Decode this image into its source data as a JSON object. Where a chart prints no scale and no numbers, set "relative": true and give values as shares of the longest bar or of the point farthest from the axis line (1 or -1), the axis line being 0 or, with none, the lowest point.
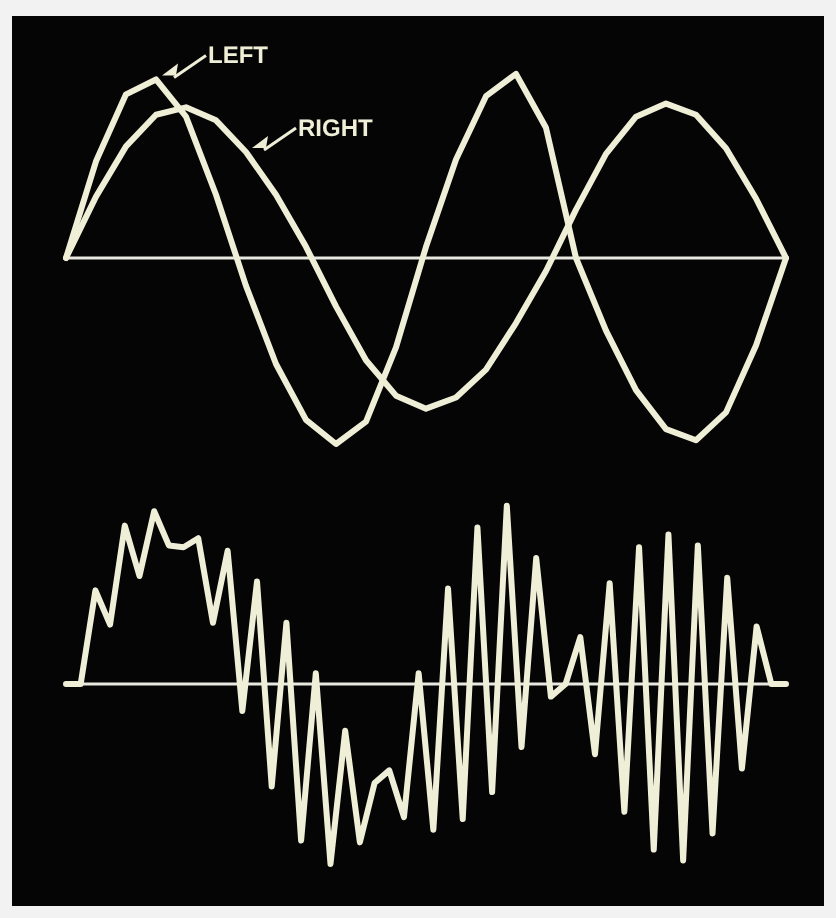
{
  "chart_data": [
    {
      "type": "line",
      "relative": true,
      "legend": "top left",
      "categories": [
        null,
        null,
        null,
        null,
        null,
        null,
        null,
        null,
        null,
        null,
        null,
        null,
        null,
        null,
        null,
        null,
        null,
        null,
        null,
        null,
        null,
        null,
        null,
        null,
        null
      ],
      "series": [
        {
          "name": "LEFT",
          "color": "#efeed6",
          "values": [
            0,
            0.52,
            0.88,
            0.96,
            0.76,
            0.34,
            -0.15,
            -0.57,
            -0.87,
            -1.0,
            -0.88,
            -0.48,
            0.06,
            0.53,
            0.87,
            0.99,
            0.7,
            0,
            -0.39,
            -0.71,
            -0.92,
            -0.98,
            -0.83,
            -0.47,
            0
          ]
        },
        {
          "name": "RIGHT",
          "color": "#efeed6",
          "values": [
            0,
            0.33,
            0.6,
            0.77,
            0.81,
            0.74,
            0.57,
            0.34,
            0.06,
            -0.26,
            -0.55,
            -0.74,
            -0.81,
            -0.75,
            -0.6,
            -0.35,
            -0.07,
            0.26,
            0.56,
            0.76,
            0.83,
            0.77,
            0.59,
            0.32,
            0
          ]
        }
      ]
    },
    {
      "type": "line",
      "relative": true,
      "categories": [
        null,
        null,
        null,
        null,
        null,
        null,
        null,
        null,
        null,
        null,
        null,
        null,
        null,
        null,
        null,
        null,
        null,
        null,
        null,
        null,
        null,
        null,
        null,
        null,
        null,
        null,
        null,
        null,
        null,
        null,
        null,
        null,
        null,
        null,
        null,
        null,
        null,
        null,
        null,
        null,
        null,
        null,
        null,
        null,
        null,
        null,
        null,
        null,
        null,
        null
      ],
      "series": [
        {
          "color": "#efeed6",
          "values": [
            0,
            0,
            0.52,
            0.33,
            0.88,
            0.6,
            0.96,
            0.77,
            0.76,
            0.81,
            0.34,
            0.74,
            -0.15,
            0.57,
            -0.57,
            0.34,
            -0.87,
            0.06,
            -1.0,
            -0.26,
            -0.88,
            -0.55,
            -0.48,
            -0.74,
            0.06,
            -0.81,
            0.53,
            -0.75,
            0.87,
            -0.6,
            0.99,
            -0.35,
            0.7,
            -0.07,
            0,
            0.26,
            -0.39,
            0.56,
            -0.71,
            0.76,
            -0.92,
            0.83,
            -0.98,
            0.77,
            -0.83,
            0.59,
            -0.47,
            0.32,
            0,
            0
          ]
        }
      ]
    }
  ]
}
